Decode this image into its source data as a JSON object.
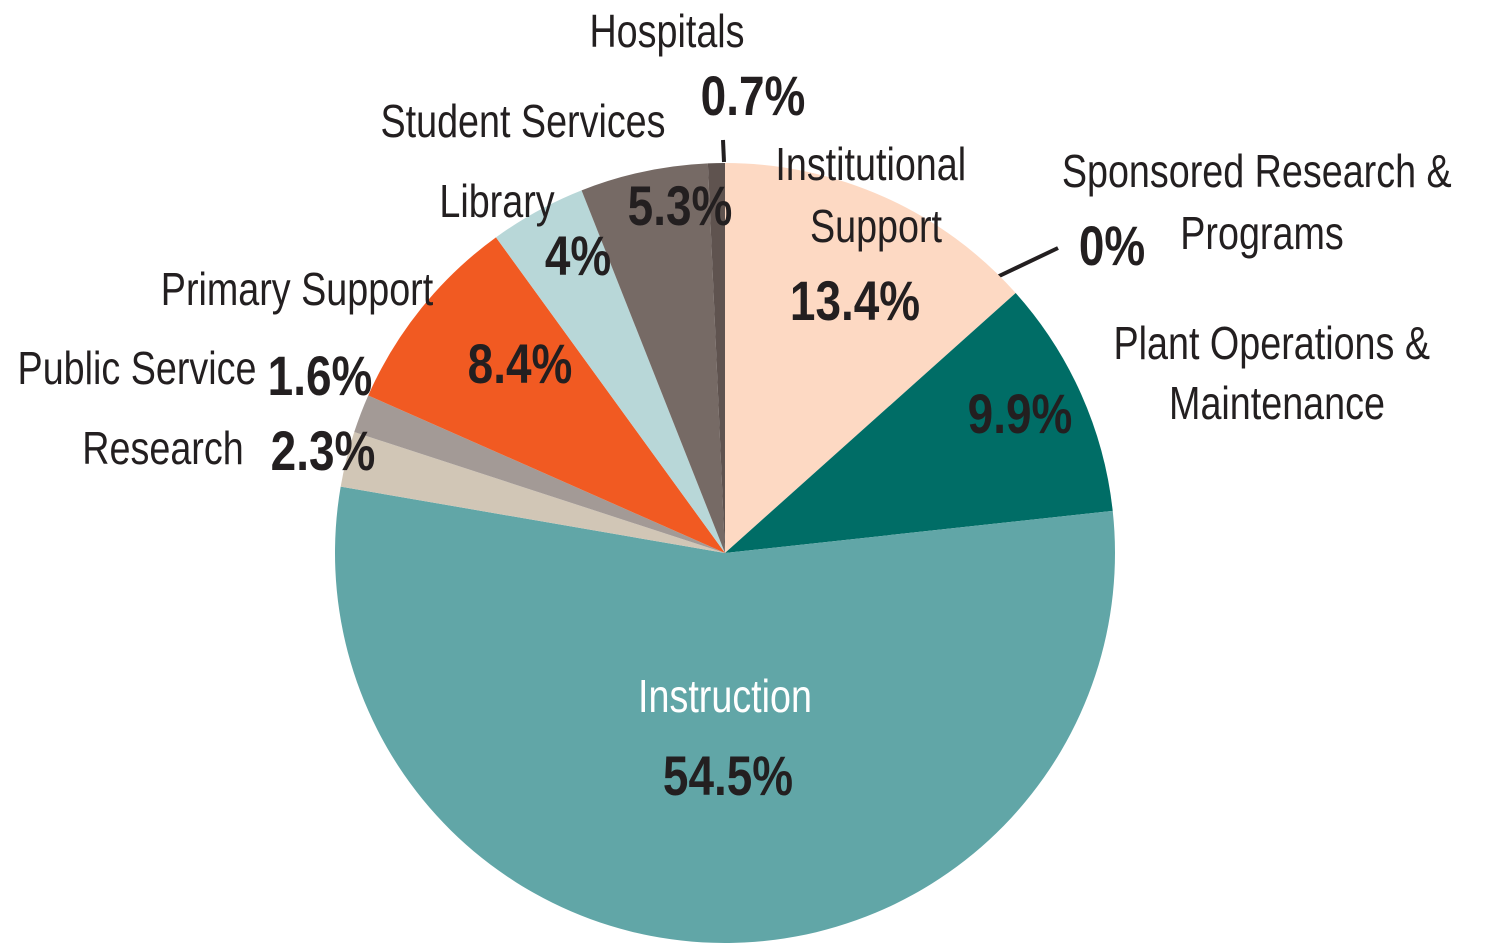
{
  "chart_data": {
    "type": "pie",
    "categories": [
      "Institutional Support",
      "Sponsored Research & Programs",
      "Plant Operations & Maintenance",
      "Instruction",
      "Research",
      "Public Service",
      "Primary Support",
      "Library",
      "Student Services",
      "Hospitals"
    ],
    "values": [
      13.4,
      0,
      9.9,
      54.5,
      2.3,
      1.6,
      8.4,
      4,
      5.3,
      0.7
    ],
    "value_labels": [
      "13.4%",
      "0%",
      "9.9%",
      "54.5%",
      "2.3%",
      "1.6%",
      "8.4%",
      "4%",
      "5.3%",
      "0.7%"
    ],
    "colors": [
      "#fdd9c3",
      "#006d66",
      "#006d66",
      "#61a6a7",
      "#d1c6b6",
      "#a39a96",
      "#f15a22",
      "#b8d7d8",
      "#766a65",
      "#5f534f"
    ]
  }
}
